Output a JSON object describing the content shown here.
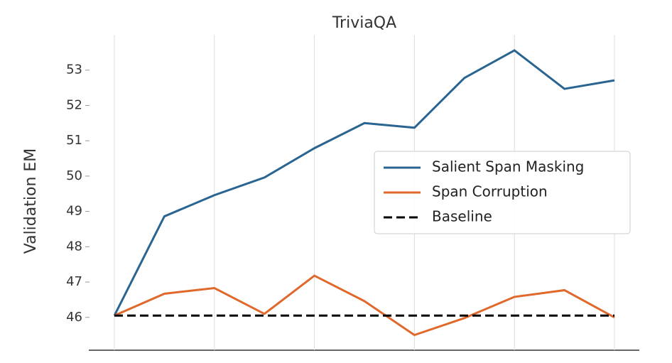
{
  "chart_data": {
    "type": "line",
    "title": "TriviaQA",
    "y_label": "Validation EM",
    "categories": [
      null,
      null,
      null,
      null,
      null,
      null,
      null,
      null,
      null,
      null,
      null
    ],
    "series": [
      {
        "name": "Salient Span Masking",
        "color": "#2a6592",
        "dash": false,
        "values": [
          46.05,
          48.86,
          49.46,
          49.96,
          50.79,
          51.5,
          51.37,
          52.78,
          53.56,
          52.47,
          52.71
        ]
      },
      {
        "name": "Span Corruption",
        "color": "#e0682a",
        "dash": false,
        "values": [
          46.05,
          46.67,
          46.83,
          46.1,
          47.18,
          46.46,
          45.5,
          45.98,
          46.58,
          46.77,
          46.0
        ]
      },
      {
        "name": "Baseline",
        "color": "#000000",
        "dash": true,
        "values": [
          46.05,
          46.05,
          46.05,
          46.05,
          46.05,
          46.05,
          46.05,
          46.05,
          46.05,
          46.05,
          46.05
        ]
      }
    ],
    "ylim": [
      45.07,
      54.0
    ],
    "yticks": [
      46,
      47,
      48,
      49,
      50,
      51,
      52,
      53
    ],
    "grid": true,
    "legend": "right"
  }
}
